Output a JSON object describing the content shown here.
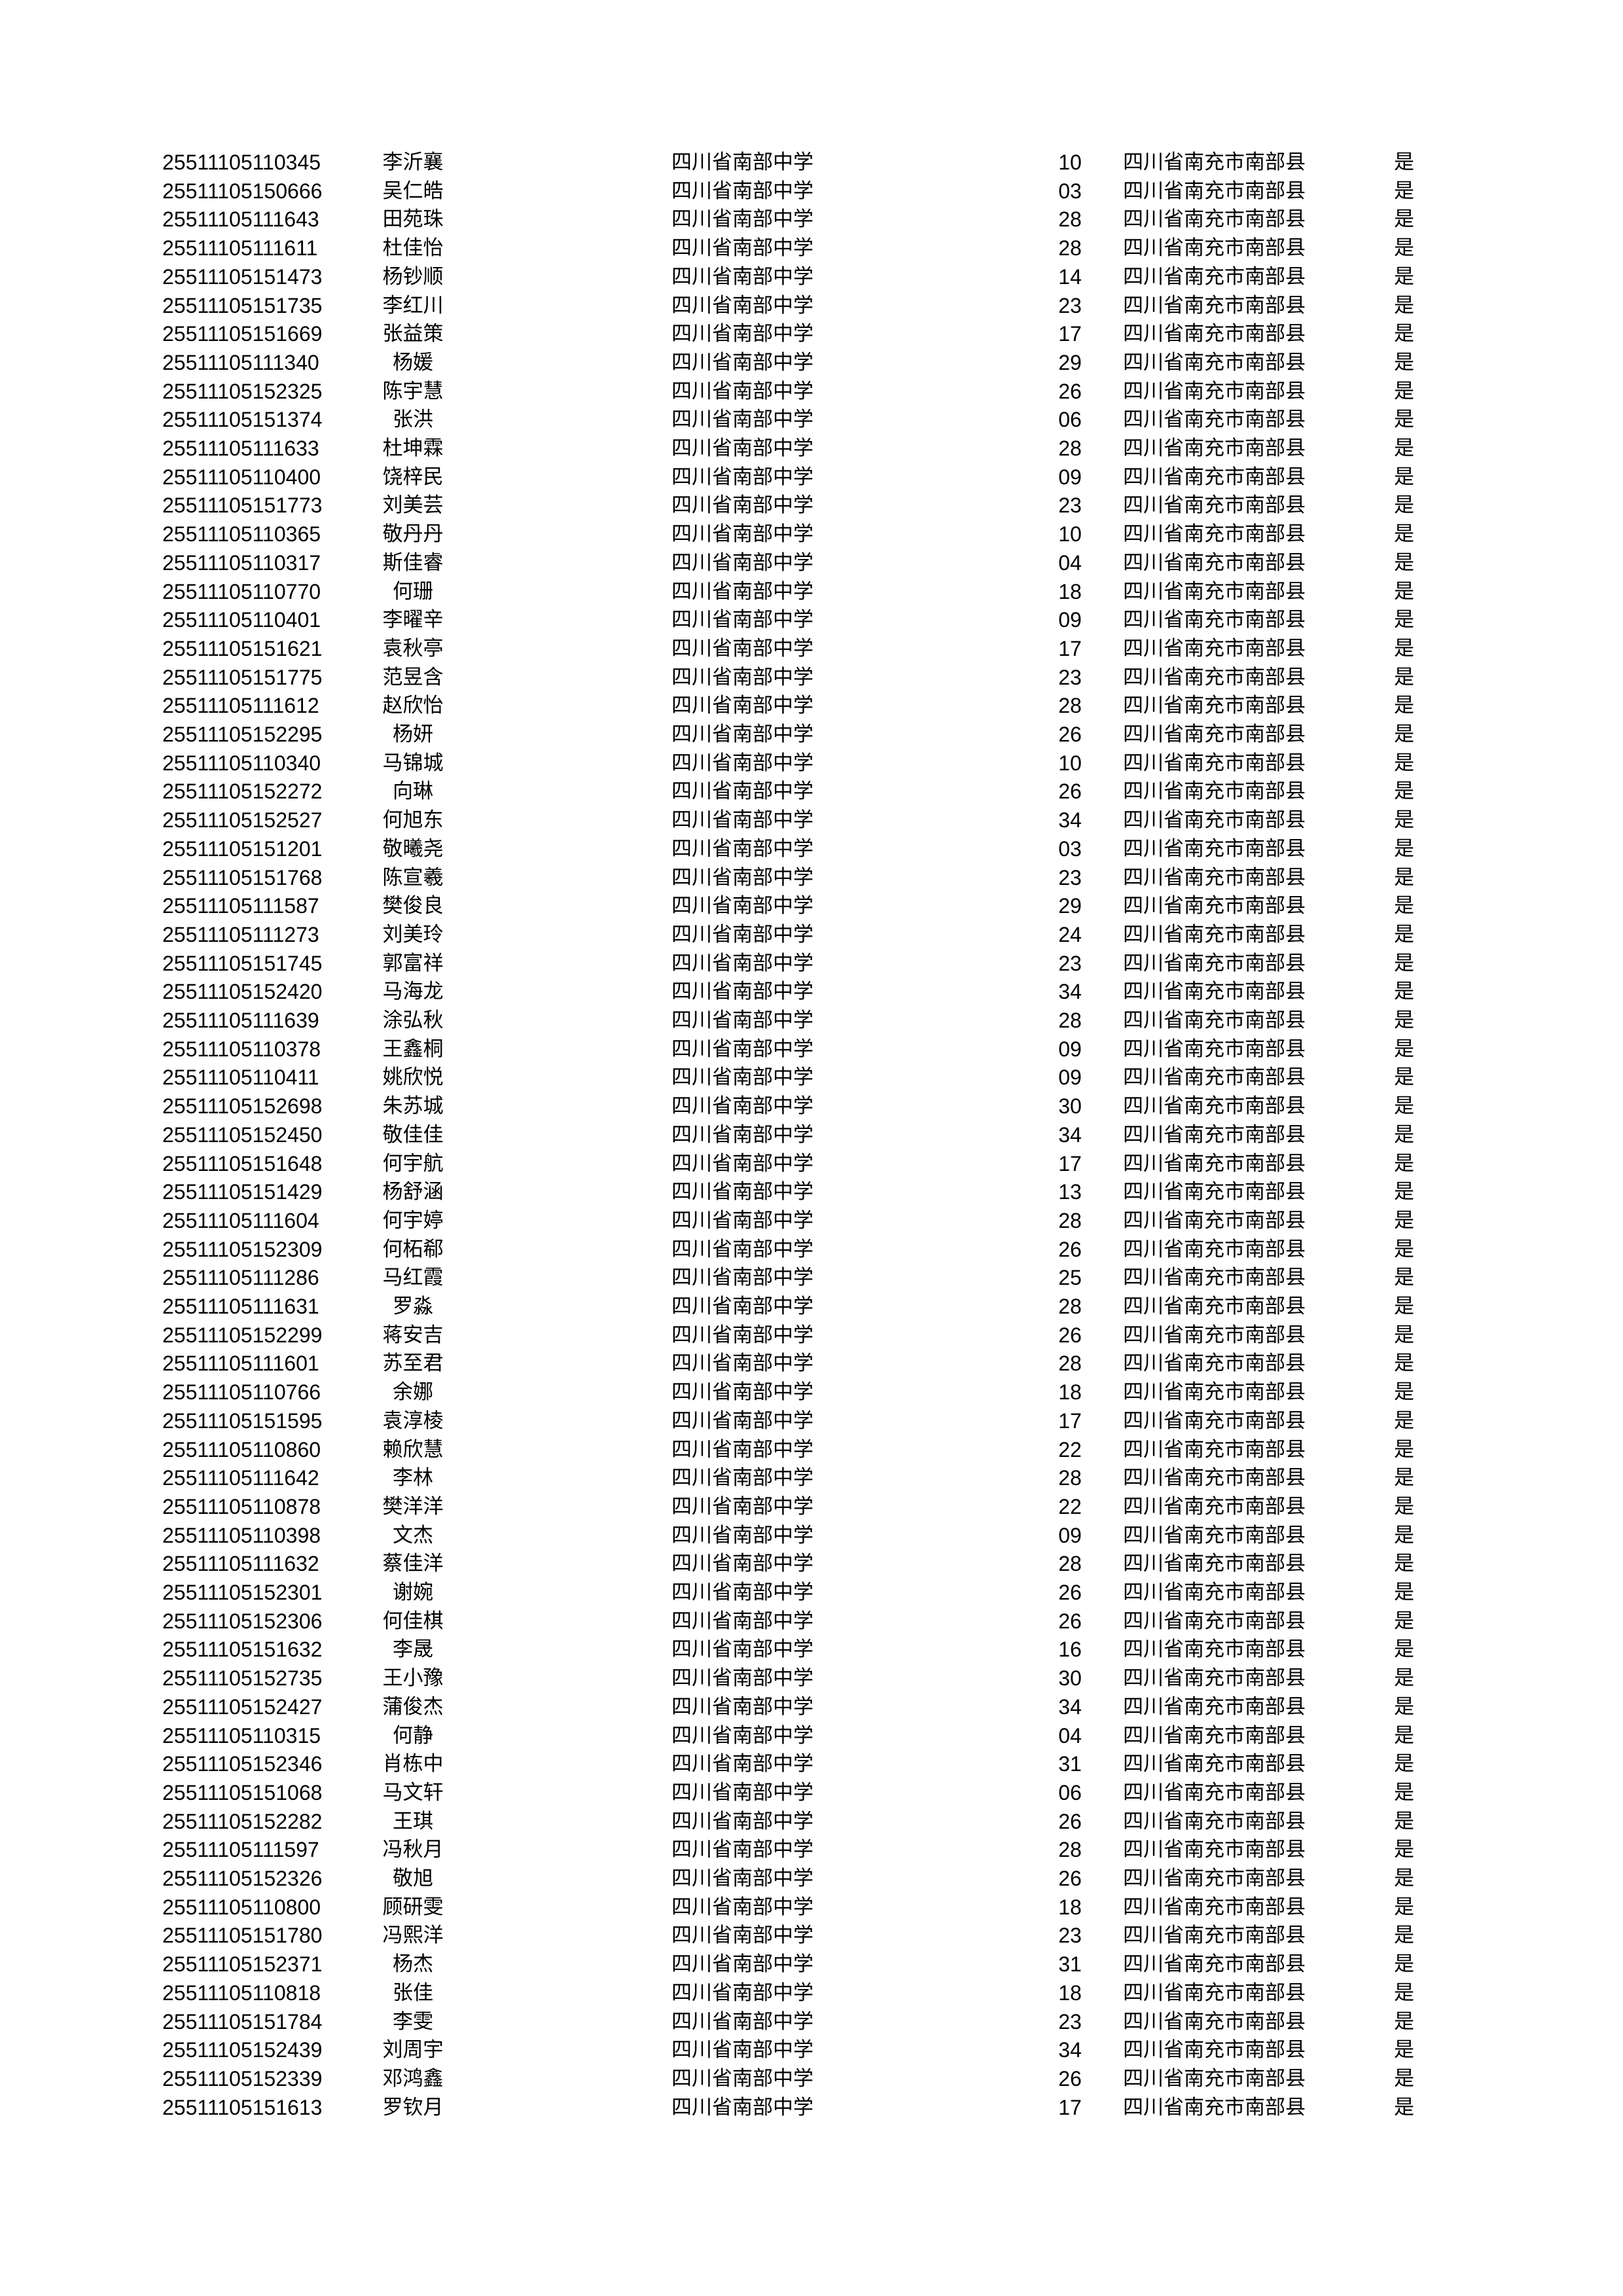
{
  "table": {
    "rows": [
      [
        "25511105110345",
        "李沂襄",
        "四川省南部中学",
        "10",
        "四川省南充市南部县",
        "是"
      ],
      [
        "25511105150666",
        "吴仁皓",
        "四川省南部中学",
        "03",
        "四川省南充市南部县",
        "是"
      ],
      [
        "25511105111643",
        "田苑珠",
        "四川省南部中学",
        "28",
        "四川省南充市南部县",
        "是"
      ],
      [
        "25511105111611",
        "杜佳怡",
        "四川省南部中学",
        "28",
        "四川省南充市南部县",
        "是"
      ],
      [
        "25511105151473",
        "杨钞顺",
        "四川省南部中学",
        "14",
        "四川省南充市南部县",
        "是"
      ],
      [
        "25511105151735",
        "李红川",
        "四川省南部中学",
        "23",
        "四川省南充市南部县",
        "是"
      ],
      [
        "25511105151669",
        "张益策",
        "四川省南部中学",
        "17",
        "四川省南充市南部县",
        "是"
      ],
      [
        "25511105111340",
        "杨媛",
        "四川省南部中学",
        "29",
        "四川省南充市南部县",
        "是"
      ],
      [
        "25511105152325",
        "陈宇慧",
        "四川省南部中学",
        "26",
        "四川省南充市南部县",
        "是"
      ],
      [
        "25511105151374",
        "张洪",
        "四川省南部中学",
        "06",
        "四川省南充市南部县",
        "是"
      ],
      [
        "25511105111633",
        "杜坤霖",
        "四川省南部中学",
        "28",
        "四川省南充市南部县",
        "是"
      ],
      [
        "25511105110400",
        "饶梓民",
        "四川省南部中学",
        "09",
        "四川省南充市南部县",
        "是"
      ],
      [
        "25511105151773",
        "刘美芸",
        "四川省南部中学",
        "23",
        "四川省南充市南部县",
        "是"
      ],
      [
        "25511105110365",
        "敬丹丹",
        "四川省南部中学",
        "10",
        "四川省南充市南部县",
        "是"
      ],
      [
        "25511105110317",
        "斯佳睿",
        "四川省南部中学",
        "04",
        "四川省南充市南部县",
        "是"
      ],
      [
        "25511105110770",
        "何珊",
        "四川省南部中学",
        "18",
        "四川省南充市南部县",
        "是"
      ],
      [
        "25511105110401",
        "李曜辛",
        "四川省南部中学",
        "09",
        "四川省南充市南部县",
        "是"
      ],
      [
        "25511105151621",
        "袁秋亭",
        "四川省南部中学",
        "17",
        "四川省南充市南部县",
        "是"
      ],
      [
        "25511105151775",
        "范昱含",
        "四川省南部中学",
        "23",
        "四川省南充市南部县",
        "是"
      ],
      [
        "25511105111612",
        "赵欣怡",
        "四川省南部中学",
        "28",
        "四川省南充市南部县",
        "是"
      ],
      [
        "25511105152295",
        "杨妍",
        "四川省南部中学",
        "26",
        "四川省南充市南部县",
        "是"
      ],
      [
        "25511105110340",
        "马锦城",
        "四川省南部中学",
        "10",
        "四川省南充市南部县",
        "是"
      ],
      [
        "25511105152272",
        "向琳",
        "四川省南部中学",
        "26",
        "四川省南充市南部县",
        "是"
      ],
      [
        "25511105152527",
        "何旭东",
        "四川省南部中学",
        "34",
        "四川省南充市南部县",
        "是"
      ],
      [
        "25511105151201",
        "敬曦尧",
        "四川省南部中学",
        "03",
        "四川省南充市南部县",
        "是"
      ],
      [
        "25511105151768",
        "陈宣羲",
        "四川省南部中学",
        "23",
        "四川省南充市南部县",
        "是"
      ],
      [
        "25511105111587",
        "樊俊良",
        "四川省南部中学",
        "29",
        "四川省南充市南部县",
        "是"
      ],
      [
        "25511105111273",
        "刘美玲",
        "四川省南部中学",
        "24",
        "四川省南充市南部县",
        "是"
      ],
      [
        "25511105151745",
        "郭富祥",
        "四川省南部中学",
        "23",
        "四川省南充市南部县",
        "是"
      ],
      [
        "25511105152420",
        "马海龙",
        "四川省南部中学",
        "34",
        "四川省南充市南部县",
        "是"
      ],
      [
        "25511105111639",
        "涂弘秋",
        "四川省南部中学",
        "28",
        "四川省南充市南部县",
        "是"
      ],
      [
        "25511105110378",
        "王鑫桐",
        "四川省南部中学",
        "09",
        "四川省南充市南部县",
        "是"
      ],
      [
        "25511105110411",
        "姚欣悦",
        "四川省南部中学",
        "09",
        "四川省南充市南部县",
        "是"
      ],
      [
        "25511105152698",
        "朱苏城",
        "四川省南部中学",
        "30",
        "四川省南充市南部县",
        "是"
      ],
      [
        "25511105152450",
        "敬佳佳",
        "四川省南部中学",
        "34",
        "四川省南充市南部县",
        "是"
      ],
      [
        "25511105151648",
        "何宇航",
        "四川省南部中学",
        "17",
        "四川省南充市南部县",
        "是"
      ],
      [
        "25511105151429",
        "杨舒涵",
        "四川省南部中学",
        "13",
        "四川省南充市南部县",
        "是"
      ],
      [
        "25511105111604",
        "何宇婷",
        "四川省南部中学",
        "28",
        "四川省南充市南部县",
        "是"
      ],
      [
        "25511105152309",
        "何柘郗",
        "四川省南部中学",
        "26",
        "四川省南充市南部县",
        "是"
      ],
      [
        "25511105111286",
        "马红霞",
        "四川省南部中学",
        "25",
        "四川省南充市南部县",
        "是"
      ],
      [
        "25511105111631",
        "罗淼",
        "四川省南部中学",
        "28",
        "四川省南充市南部县",
        "是"
      ],
      [
        "25511105152299",
        "蒋安吉",
        "四川省南部中学",
        "26",
        "四川省南充市南部县",
        "是"
      ],
      [
        "25511105111601",
        "苏至君",
        "四川省南部中学",
        "28",
        "四川省南充市南部县",
        "是"
      ],
      [
        "25511105110766",
        "余娜",
        "四川省南部中学",
        "18",
        "四川省南充市南部县",
        "是"
      ],
      [
        "25511105151595",
        "袁淳棱",
        "四川省南部中学",
        "17",
        "四川省南充市南部县",
        "是"
      ],
      [
        "25511105110860",
        "赖欣慧",
        "四川省南部中学",
        "22",
        "四川省南充市南部县",
        "是"
      ],
      [
        "25511105111642",
        "李林",
        "四川省南部中学",
        "28",
        "四川省南充市南部县",
        "是"
      ],
      [
        "25511105110878",
        "樊洋洋",
        "四川省南部中学",
        "22",
        "四川省南充市南部县",
        "是"
      ],
      [
        "25511105110398",
        "文杰",
        "四川省南部中学",
        "09",
        "四川省南充市南部县",
        "是"
      ],
      [
        "25511105111632",
        "蔡佳洋",
        "四川省南部中学",
        "28",
        "四川省南充市南部县",
        "是"
      ],
      [
        "25511105152301",
        "谢婉",
        "四川省南部中学",
        "26",
        "四川省南充市南部县",
        "是"
      ],
      [
        "25511105152306",
        "何佳棋",
        "四川省南部中学",
        "26",
        "四川省南充市南部县",
        "是"
      ],
      [
        "25511105151632",
        "李晟",
        "四川省南部中学",
        "16",
        "四川省南充市南部县",
        "是"
      ],
      [
        "25511105152735",
        "王小豫",
        "四川省南部中学",
        "30",
        "四川省南充市南部县",
        "是"
      ],
      [
        "25511105152427",
        "蒲俊杰",
        "四川省南部中学",
        "34",
        "四川省南充市南部县",
        "是"
      ],
      [
        "25511105110315",
        "何静",
        "四川省南部中学",
        "04",
        "四川省南充市南部县",
        "是"
      ],
      [
        "25511105152346",
        "肖栋中",
        "四川省南部中学",
        "31",
        "四川省南充市南部县",
        "是"
      ],
      [
        "25511105151068",
        "马文轩",
        "四川省南部中学",
        "06",
        "四川省南充市南部县",
        "是"
      ],
      [
        "25511105152282",
        "王琪",
        "四川省南部中学",
        "26",
        "四川省南充市南部县",
        "是"
      ],
      [
        "25511105111597",
        "冯秋月",
        "四川省南部中学",
        "28",
        "四川省南充市南部县",
        "是"
      ],
      [
        "25511105152326",
        "敬旭",
        "四川省南部中学",
        "26",
        "四川省南充市南部县",
        "是"
      ],
      [
        "25511105110800",
        "顾研雯",
        "四川省南部中学",
        "18",
        "四川省南充市南部县",
        "是"
      ],
      [
        "25511105151780",
        "冯熙洋",
        "四川省南部中学",
        "23",
        "四川省南充市南部县",
        "是"
      ],
      [
        "25511105152371",
        "杨杰",
        "四川省南部中学",
        "31",
        "四川省南充市南部县",
        "是"
      ],
      [
        "25511105110818",
        "张佳",
        "四川省南部中学",
        "18",
        "四川省南充市南部县",
        "是"
      ],
      [
        "25511105151784",
        "李雯",
        "四川省南部中学",
        "23",
        "四川省南充市南部县",
        "是"
      ],
      [
        "25511105152439",
        "刘周宇",
        "四川省南部中学",
        "34",
        "四川省南充市南部县",
        "是"
      ],
      [
        "25511105152339",
        "邓鸿鑫",
        "四川省南部中学",
        "26",
        "四川省南充市南部县",
        "是"
      ],
      [
        "25511105151613",
        "罗钦月",
        "四川省南部中学",
        "17",
        "四川省南充市南部县",
        "是"
      ]
    ]
  }
}
